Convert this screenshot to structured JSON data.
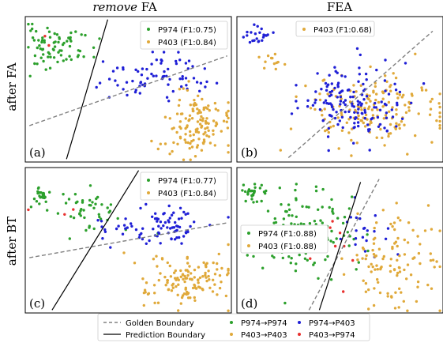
{
  "column_titles": [
    {
      "italic": "remove",
      "normal": " FA"
    },
    {
      "italic": "",
      "normal": "FEA"
    }
  ],
  "row_titles": [
    "after FA",
    "after BT"
  ],
  "colors": {
    "p974_p974": "#2ca02c",
    "p974_p403": "#1f1fd6",
    "p403_p403": "#e0a93a",
    "p403_p974": "#e8302e",
    "golden": "#808080",
    "prediction": "#000000"
  },
  "legend": {
    "golden": "Golden Boundary",
    "prediction": "Prediction Boundary",
    "p974_p974": "P974→P974",
    "p974_p403": "P974→P403",
    "p403_p403": "P403→P403",
    "p403_p974": "P403→P974"
  },
  "chart_data": [
    {
      "type": "scatter",
      "panel_label": "(a)",
      "legend_entries": [
        "P974 (F1:0.75)",
        "P403 (F1:0.84)"
      ],
      "golden_boundary": [
        [
          0.02,
          0.25
        ],
        [
          0.98,
          0.73
        ]
      ],
      "prediction_boundary": [
        [
          0.2,
          0.02
        ],
        [
          0.4,
          0.98
        ]
      ],
      "clusters": [
        {
          "cls": "p974_p974",
          "n": 75,
          "cx": 0.15,
          "cy": 0.79,
          "sx": 0.09,
          "sy": 0.07,
          "seed": 11
        },
        {
          "cls": "p974_p403",
          "n": 75,
          "cx": 0.63,
          "cy": 0.59,
          "sx": 0.13,
          "sy": 0.07,
          "seed": 12
        },
        {
          "cls": "p403_p403",
          "n": 130,
          "cx": 0.81,
          "cy": 0.26,
          "sx": 0.09,
          "sy": 0.11,
          "seed": 13
        },
        {
          "cls": "p403_p974",
          "n": 2,
          "cx": 0.16,
          "cy": 0.83,
          "sx": 0.04,
          "sy": 0.04,
          "seed": 14
        }
      ]
    },
    {
      "type": "scatter",
      "panel_label": "(b)",
      "legend_entries": [
        "P403 (F1:0.68)"
      ],
      "golden_boundary": [
        [
          0.25,
          0.03
        ],
        [
          0.95,
          0.9
        ]
      ],
      "prediction_boundary": null,
      "clusters": [
        {
          "cls": "p974_p403",
          "n": 22,
          "cx": 0.1,
          "cy": 0.87,
          "sx": 0.03,
          "sy": 0.04,
          "seed": 21
        },
        {
          "cls": "p403_p403",
          "n": 12,
          "cx": 0.17,
          "cy": 0.7,
          "sx": 0.02,
          "sy": 0.03,
          "seed": 22
        },
        {
          "cls": "p403_p403",
          "n": 170,
          "cx": 0.65,
          "cy": 0.35,
          "sx": 0.17,
          "sy": 0.12,
          "seed": 23
        },
        {
          "cls": "p974_p403",
          "n": 150,
          "cx": 0.53,
          "cy": 0.4,
          "sx": 0.13,
          "sy": 0.12,
          "seed": 24
        }
      ]
    },
    {
      "type": "scatter",
      "panel_label": "(c)",
      "legend_entries": [
        "P974 (F1:0.77)",
        "P403 (F1:0.84)"
      ],
      "golden_boundary": [
        [
          0.02,
          0.38
        ],
        [
          0.98,
          0.62
        ]
      ],
      "prediction_boundary": [
        [
          0.13,
          0.02
        ],
        [
          0.55,
          0.98
        ]
      ],
      "clusters": [
        {
          "cls": "p974_p974",
          "n": 25,
          "cx": 0.08,
          "cy": 0.8,
          "sx": 0.02,
          "sy": 0.03,
          "seed": 31
        },
        {
          "cls": "p974_p974",
          "n": 45,
          "cx": 0.31,
          "cy": 0.71,
          "sx": 0.09,
          "sy": 0.07,
          "seed": 32
        },
        {
          "cls": "p974_p403",
          "n": 85,
          "cx": 0.64,
          "cy": 0.59,
          "sx": 0.13,
          "sy": 0.06,
          "seed": 33
        },
        {
          "cls": "p403_p403",
          "n": 130,
          "cx": 0.77,
          "cy": 0.23,
          "sx": 0.12,
          "sy": 0.1,
          "seed": 34
        },
        {
          "cls": "p403_p974",
          "n": 3,
          "cx": 0.22,
          "cy": 0.68,
          "sx": 0.1,
          "sy": 0.05,
          "seed": 35
        }
      ]
    },
    {
      "type": "scatter",
      "panel_label": "(d)",
      "legend_entries": [
        "P974 (F1:0.88)",
        "P403 (F1:0.88)"
      ],
      "golden_boundary": [
        [
          0.35,
          0.02
        ],
        [
          0.69,
          0.92
        ]
      ],
      "prediction_boundary": [
        [
          0.4,
          0.02
        ],
        [
          0.6,
          0.9
        ]
      ],
      "clusters": [
        {
          "cls": "p974_p974",
          "n": 30,
          "cx": 0.09,
          "cy": 0.82,
          "sx": 0.03,
          "sy": 0.04,
          "seed": 41
        },
        {
          "cls": "p974_p974",
          "n": 120,
          "cx": 0.32,
          "cy": 0.56,
          "sx": 0.13,
          "sy": 0.15,
          "seed": 42
        },
        {
          "cls": "p974_p403",
          "n": 22,
          "cx": 0.58,
          "cy": 0.54,
          "sx": 0.09,
          "sy": 0.11,
          "seed": 43
        },
        {
          "cls": "p403_p403",
          "n": 110,
          "cx": 0.74,
          "cy": 0.34,
          "sx": 0.12,
          "sy": 0.17,
          "seed": 44
        },
        {
          "cls": "p403_p974",
          "n": 10,
          "cx": 0.43,
          "cy": 0.42,
          "sx": 0.06,
          "sy": 0.12,
          "seed": 45
        }
      ]
    }
  ]
}
